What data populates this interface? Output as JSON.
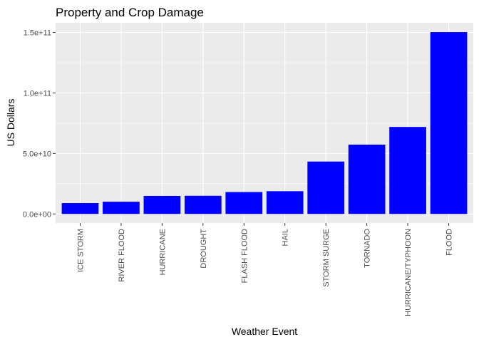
{
  "chart_data": {
    "type": "bar",
    "title": "Property and Crop Damage",
    "xlabel": "Weather Event",
    "ylabel": "US Dollars",
    "categories": [
      "ICE STORM",
      "RIVER FLOOD",
      "HURRICANE",
      "DROUGHT",
      "FLASH FLOOD",
      "HAIL",
      "STORM SURGE",
      "TORNADO",
      "HURRICANE/TYPHOON",
      "FLOOD"
    ],
    "values": [
      8970000000.0,
      10100000000.0,
      14900000000.0,
      15000000000.0,
      18100000000.0,
      18800000000.0,
      43300000000.0,
      57300000000.0,
      71900000000.0,
      150300000000.0
    ],
    "yticks": [
      {
        "value": 0,
        "label": "0.0e+00"
      },
      {
        "value": 50000000000,
        "label": "5.0e+10"
      },
      {
        "value": 100000000000,
        "label": "1.0e+11"
      },
      {
        "value": 150000000000,
        "label": "1.5e+11"
      }
    ],
    "ylim": [
      -7500000000.0,
      158000000000.0
    ],
    "bar_color": "#0000ff",
    "panel_color": "#ebebeb",
    "grid": true,
    "legend": "none"
  }
}
